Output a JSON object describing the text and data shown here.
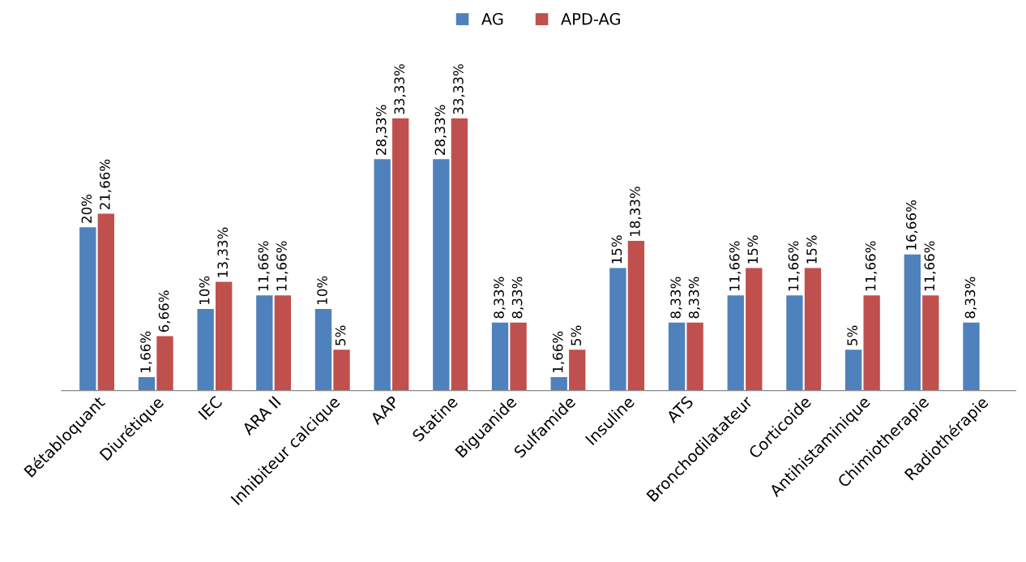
{
  "chart_data": {
    "type": "bar",
    "categories": [
      "Bétabloquant",
      "Diurétique",
      "IEC",
      "ARA II",
      "Inhibiteur calcique",
      "AAP",
      "Statine",
      "Biguanide",
      "Sulfamide",
      "Insuline",
      "ATS",
      "Bronchodilatateur",
      "Corticoide",
      "Antihistaminique",
      "Chimiotherapie",
      "Radiothérapie"
    ],
    "series": [
      {
        "name": "AG",
        "color": "#4f81bd",
        "values": [
          20,
          1.66,
          10,
          11.66,
          10,
          28.33,
          28.33,
          8.33,
          1.66,
          15,
          8.33,
          11.66,
          11.66,
          5,
          16.66,
          8.33
        ],
        "value_labels": [
          "20%",
          "1,66%",
          "10%",
          "11,66%",
          "10%",
          "28,33%",
          "28,33%",
          "8,33%",
          "1,66%",
          "15%",
          "8,33%",
          "11,66%",
          "11,66%",
          "5%",
          "16,66%",
          "8,33%"
        ]
      },
      {
        "name": "APD-AG",
        "color": "#c0504d",
        "values": [
          21.66,
          6.66,
          13.33,
          11.66,
          5,
          33.33,
          33.33,
          8.33,
          5,
          18.33,
          8.33,
          15,
          15,
          11.66,
          11.66,
          null
        ],
        "value_labels": [
          "21,66%",
          "6,66%",
          "13,33%",
          "11,66%",
          "5%",
          "33,33%",
          "33,33%",
          "8,33%",
          "5%",
          "18,33%",
          "8,33%",
          "15%",
          "15%",
          "11,66%",
          "11,66%",
          null
        ]
      }
    ],
    "legend": "top",
    "grid": false
  }
}
